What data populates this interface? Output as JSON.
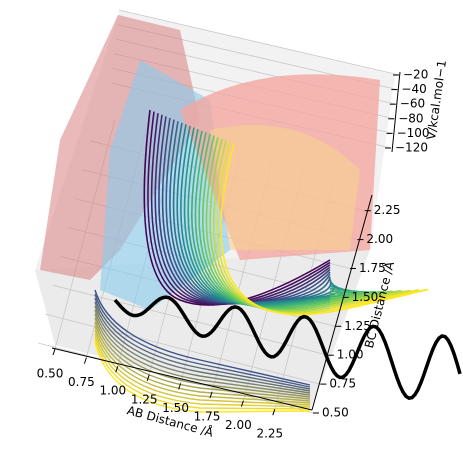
{
  "chart_data": {
    "type": "surface3d",
    "xlabel": "AB Distance /Å",
    "ylabel": "BC Distance /Å",
    "zlabel": "V/kcal.mol−1",
    "xticks": [
      {
        "value": 0.5,
        "label": "0.50"
      },
      {
        "value": 0.75,
        "label": "0.75"
      },
      {
        "value": 1.0,
        "label": "1.00"
      },
      {
        "value": 1.25,
        "label": "1.25"
      },
      {
        "value": 1.5,
        "label": "1.50"
      },
      {
        "value": 1.75,
        "label": "1.75"
      },
      {
        "value": 2.0,
        "label": "2.00"
      },
      {
        "value": 2.25,
        "label": "2.25"
      }
    ],
    "yticks": [
      {
        "value": 0.5,
        "label": "0.50"
      },
      {
        "value": 0.75,
        "label": "0.75"
      },
      {
        "value": 1.0,
        "label": "1.00"
      },
      {
        "value": 1.25,
        "label": "1.25"
      },
      {
        "value": 1.5,
        "label": "1.50"
      },
      {
        "value": 1.75,
        "label": "1.75"
      },
      {
        "value": 2.0,
        "label": "2.00"
      },
      {
        "value": 2.25,
        "label": "2.25"
      }
    ],
    "zticks": [
      {
        "value": -20,
        "label": "−20"
      },
      {
        "value": -40,
        "label": "−40"
      },
      {
        "value": -60,
        "label": "−60"
      },
      {
        "value": -80,
        "label": "−80"
      },
      {
        "value": -100,
        "label": "−100"
      },
      {
        "value": -120,
        "label": "−120"
      }
    ]
  }
}
